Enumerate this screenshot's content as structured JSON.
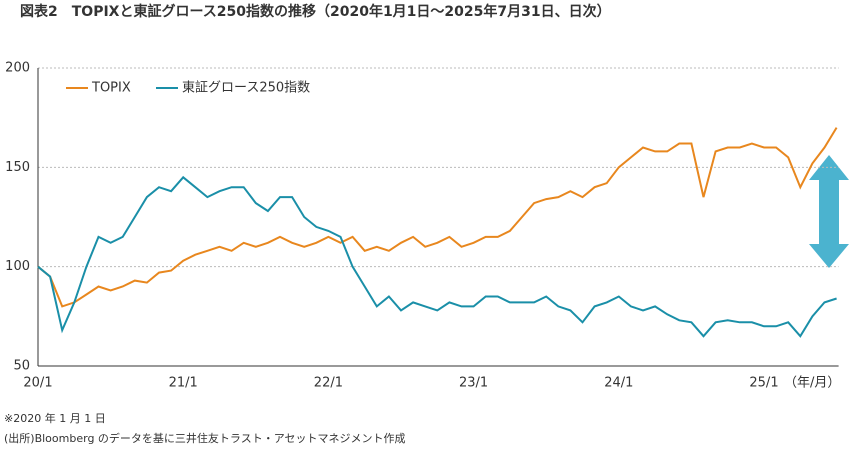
{
  "chart_data": {
    "type": "line",
    "title": "図表2　TOPIXと東証グロース250指数の推移（2020年1月1日～2025年7月31日、日次）",
    "x_label": "（年/月）",
    "notes": [
      "※2020 年 1 月 1 日",
      "(出所)Bloomberg のデータを基に三井住友トラスト・アセットマネジメント作成"
    ],
    "categories": [
      "20/1",
      null,
      null,
      null,
      null,
      null,
      null,
      null,
      null,
      null,
      null,
      null,
      "21/1",
      null,
      null,
      null,
      null,
      null,
      null,
      null,
      null,
      null,
      null,
      null,
      "22/1",
      null,
      null,
      null,
      null,
      null,
      null,
      null,
      null,
      null,
      null,
      null,
      "23/1",
      null,
      null,
      null,
      null,
      null,
      null,
      null,
      null,
      null,
      null,
      null,
      "24/1",
      null,
      null,
      null,
      null,
      null,
      null,
      null,
      null,
      null,
      null,
      null,
      "25/1",
      null,
      null,
      null,
      null,
      null,
      null
    ],
    "series": [
      {
        "name": "TOPIX",
        "color": "#e8871e",
        "values": [
          100,
          95,
          80,
          82,
          86,
          90,
          88,
          90,
          93,
          92,
          97,
          98,
          103,
          106,
          108,
          110,
          108,
          112,
          110,
          112,
          115,
          112,
          110,
          112,
          115,
          112,
          115,
          108,
          110,
          108,
          112,
          115,
          110,
          112,
          115,
          110,
          112,
          115,
          115,
          118,
          125,
          132,
          134,
          135,
          138,
          135,
          140,
          142,
          150,
          155,
          160,
          158,
          158,
          162,
          162,
          135,
          158,
          160,
          160,
          162,
          160,
          160,
          155,
          140,
          152,
          160,
          170
        ]
      },
      {
        "name": "東証グロース250指数",
        "color": "#1a8fa8",
        "values": [
          100,
          95,
          68,
          82,
          100,
          115,
          112,
          115,
          125,
          135,
          140,
          138,
          145,
          140,
          135,
          138,
          140,
          140,
          132,
          128,
          135,
          135,
          125,
          120,
          118,
          115,
          100,
          90,
          80,
          85,
          78,
          82,
          80,
          78,
          82,
          80,
          80,
          85,
          85,
          82,
          82,
          82,
          85,
          80,
          78,
          72,
          80,
          82,
          85,
          80,
          78,
          80,
          76,
          73,
          72,
          65,
          72,
          73,
          72,
          72,
          70,
          70,
          72,
          65,
          75,
          82,
          84
        ]
      }
    ],
    "ylim": [
      50,
      200
    ],
    "yticks": [
      50,
      100,
      150,
      200
    ],
    "grid": true,
    "legend": "top-left"
  }
}
